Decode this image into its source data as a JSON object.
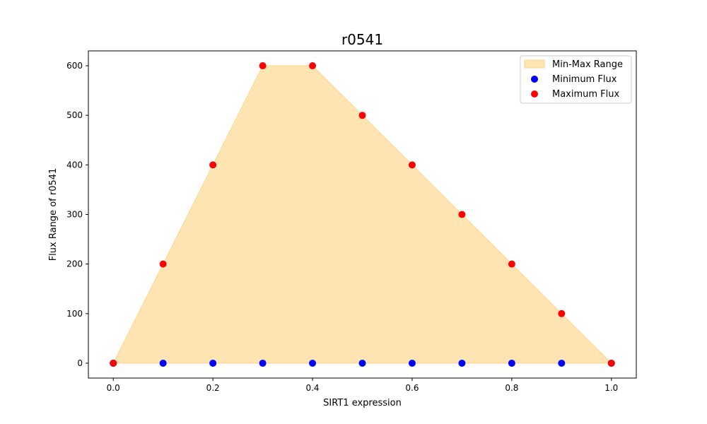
{
  "chart_data": {
    "type": "scatter",
    "title": "r0541",
    "xlabel": "SIRT1 expression",
    "ylabel": "Flux Range of r0541",
    "xlim": [
      -0.05,
      1.05
    ],
    "ylim": [
      -30,
      630
    ],
    "xticks": [
      "0.0",
      "0.2",
      "0.4",
      "0.6",
      "0.8",
      "1.0"
    ],
    "xtick_values": [
      0.0,
      0.2,
      0.4,
      0.6,
      0.8,
      1.0
    ],
    "yticks": [
      "0",
      "100",
      "200",
      "300",
      "400",
      "500",
      "600"
    ],
    "ytick_values": [
      0,
      100,
      200,
      300,
      400,
      500,
      600
    ],
    "grid": false,
    "legend_position": "top-right",
    "x": [
      0.0,
      0.1,
      0.2,
      0.3,
      0.4,
      0.5,
      0.6,
      0.7,
      0.8,
      0.9,
      1.0
    ],
    "fill_label": "Min-Max Range",
    "fill_color": "#ffe4b3",
    "series": [
      {
        "name": "Minimum Flux",
        "color": "#0000ff",
        "values": [
          0,
          0,
          0,
          0,
          0,
          0,
          0,
          0,
          0,
          0,
          0
        ]
      },
      {
        "name": "Maximum Flux",
        "color": "#ff0000",
        "values": [
          0,
          200,
          400,
          600,
          600,
          500,
          400,
          300,
          200,
          100,
          0
        ]
      }
    ]
  }
}
